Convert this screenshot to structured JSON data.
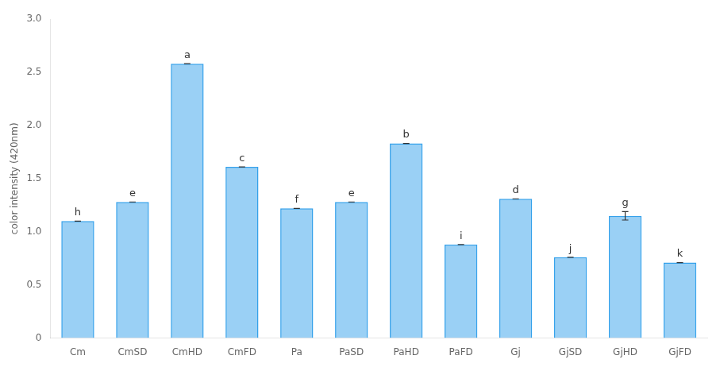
{
  "chart_data": {
    "type": "bar",
    "categories": [
      "Cm",
      "CmSD",
      "CmHD",
      "CmFD",
      "Pa",
      "PaSD",
      "PaHD",
      "PaFD",
      "Gj",
      "GjSD",
      "GjHD",
      "GjFD"
    ],
    "values": [
      1.1,
      1.28,
      2.58,
      1.61,
      1.22,
      1.28,
      1.83,
      0.88,
      1.31,
      0.76,
      1.15,
      0.71
    ],
    "errors": [
      0.0,
      0.0,
      0.0,
      0.0,
      0.0,
      0.0,
      0.0,
      0.0,
      0.0,
      0.0,
      0.04,
      0.0
    ],
    "annotations": [
      "h",
      "e",
      "a",
      "c",
      "f",
      "e",
      "b",
      "i",
      "d",
      "j",
      "g",
      "k"
    ],
    "ylabel": "color intensity (420nm)",
    "ylim": [
      0,
      3
    ],
    "yticks": [
      0,
      0.5,
      {
        "value": 1.0,
        "label": "1.0"
      },
      1.5,
      {
        "value": 2.0,
        "label": "2.0"
      },
      2.5,
      {
        "value": 3.0,
        "label": "3.0"
      }
    ],
    "grid": false
  }
}
